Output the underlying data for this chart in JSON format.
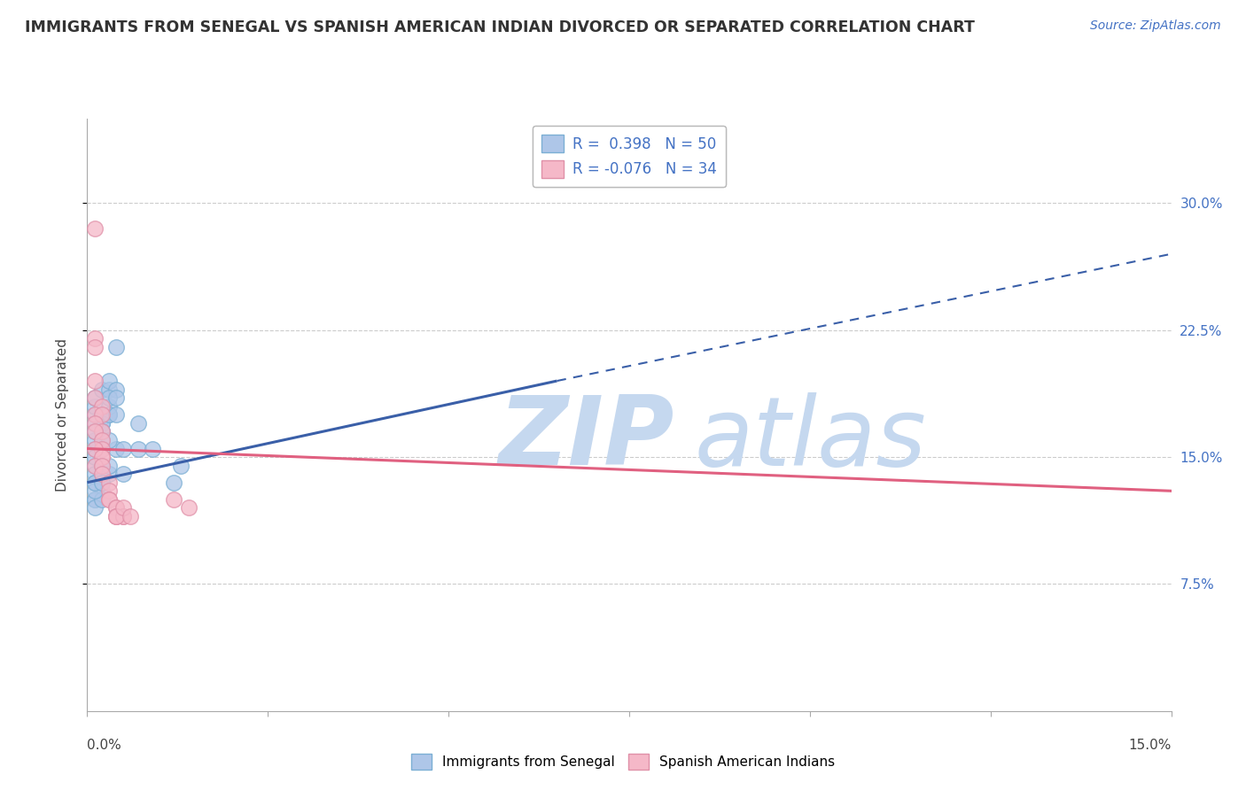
{
  "title": "IMMIGRANTS FROM SENEGAL VS SPANISH AMERICAN INDIAN DIVORCED OR SEPARATED CORRELATION CHART",
  "source_text": "Source: ZipAtlas.com",
  "ylabel": "Divorced or Separated",
  "R_blue": 0.398,
  "N_blue": 50,
  "R_pink": -0.076,
  "N_pink": 34,
  "legend_label_blue": "Immigrants from Senegal",
  "legend_label_pink": "Spanish American Indians",
  "xlim": [
    0.0,
    0.15
  ],
  "ylim": [
    0.0,
    0.35
  ],
  "yticks": [
    0.075,
    0.15,
    0.225,
    0.3
  ],
  "ytick_labels": [
    "7.5%",
    "15.0%",
    "22.5%",
    "30.0%"
  ],
  "background_color": "#ffffff",
  "grid_color": "#cccccc",
  "blue_color": "#aec6e8",
  "pink_color": "#f5b8c8",
  "blue_line_color": "#3a5fa8",
  "pink_line_color": "#e06080",
  "blue_scatter": [
    [
      0.001,
      0.155
    ],
    [
      0.002,
      0.165
    ],
    [
      0.001,
      0.145
    ],
    [
      0.002,
      0.17
    ],
    [
      0.001,
      0.16
    ],
    [
      0.001,
      0.15
    ],
    [
      0.002,
      0.155
    ],
    [
      0.001,
      0.175
    ],
    [
      0.001,
      0.14
    ],
    [
      0.002,
      0.145
    ],
    [
      0.001,
      0.135
    ],
    [
      0.001,
      0.165
    ],
    [
      0.002,
      0.16
    ],
    [
      0.001,
      0.18
    ],
    [
      0.001,
      0.185
    ],
    [
      0.002,
      0.19
    ],
    [
      0.003,
      0.175
    ],
    [
      0.002,
      0.17
    ],
    [
      0.003,
      0.18
    ],
    [
      0.002,
      0.165
    ],
    [
      0.001,
      0.17
    ],
    [
      0.002,
      0.13
    ],
    [
      0.001,
      0.125
    ],
    [
      0.002,
      0.135
    ],
    [
      0.001,
      0.125
    ],
    [
      0.001,
      0.12
    ],
    [
      0.002,
      0.125
    ],
    [
      0.001,
      0.13
    ],
    [
      0.001,
      0.135
    ],
    [
      0.002,
      0.14
    ],
    [
      0.003,
      0.14
    ],
    [
      0.002,
      0.135
    ],
    [
      0.003,
      0.145
    ],
    [
      0.004,
      0.155
    ],
    [
      0.003,
      0.16
    ],
    [
      0.003,
      0.19
    ],
    [
      0.003,
      0.195
    ],
    [
      0.004,
      0.19
    ],
    [
      0.003,
      0.185
    ],
    [
      0.003,
      0.175
    ],
    [
      0.004,
      0.175
    ],
    [
      0.004,
      0.185
    ],
    [
      0.004,
      0.215
    ],
    [
      0.005,
      0.14
    ],
    [
      0.005,
      0.155
    ],
    [
      0.007,
      0.155
    ],
    [
      0.007,
      0.17
    ],
    [
      0.009,
      0.155
    ],
    [
      0.013,
      0.145
    ],
    [
      0.012,
      0.135
    ]
  ],
  "pink_scatter": [
    [
      0.001,
      0.285
    ],
    [
      0.001,
      0.22
    ],
    [
      0.001,
      0.215
    ],
    [
      0.001,
      0.195
    ],
    [
      0.001,
      0.185
    ],
    [
      0.002,
      0.18
    ],
    [
      0.001,
      0.175
    ],
    [
      0.002,
      0.175
    ],
    [
      0.001,
      0.17
    ],
    [
      0.002,
      0.165
    ],
    [
      0.001,
      0.165
    ],
    [
      0.002,
      0.16
    ],
    [
      0.002,
      0.155
    ],
    [
      0.002,
      0.15
    ],
    [
      0.001,
      0.155
    ],
    [
      0.002,
      0.15
    ],
    [
      0.001,
      0.145
    ],
    [
      0.002,
      0.145
    ],
    [
      0.002,
      0.14
    ],
    [
      0.003,
      0.135
    ],
    [
      0.003,
      0.13
    ],
    [
      0.003,
      0.125
    ],
    [
      0.003,
      0.125
    ],
    [
      0.004,
      0.12
    ],
    [
      0.004,
      0.12
    ],
    [
      0.004,
      0.115
    ],
    [
      0.005,
      0.115
    ],
    [
      0.004,
      0.115
    ],
    [
      0.005,
      0.115
    ],
    [
      0.004,
      0.115
    ],
    [
      0.005,
      0.12
    ],
    [
      0.006,
      0.115
    ],
    [
      0.012,
      0.125
    ],
    [
      0.014,
      0.12
    ]
  ],
  "blue_line_solid": [
    [
      0.0,
      0.135
    ],
    [
      0.065,
      0.195
    ]
  ],
  "blue_line_dashed": [
    [
      0.065,
      0.195
    ],
    [
      0.15,
      0.27
    ]
  ],
  "pink_line": [
    [
      0.0,
      0.155
    ],
    [
      0.15,
      0.13
    ]
  ]
}
